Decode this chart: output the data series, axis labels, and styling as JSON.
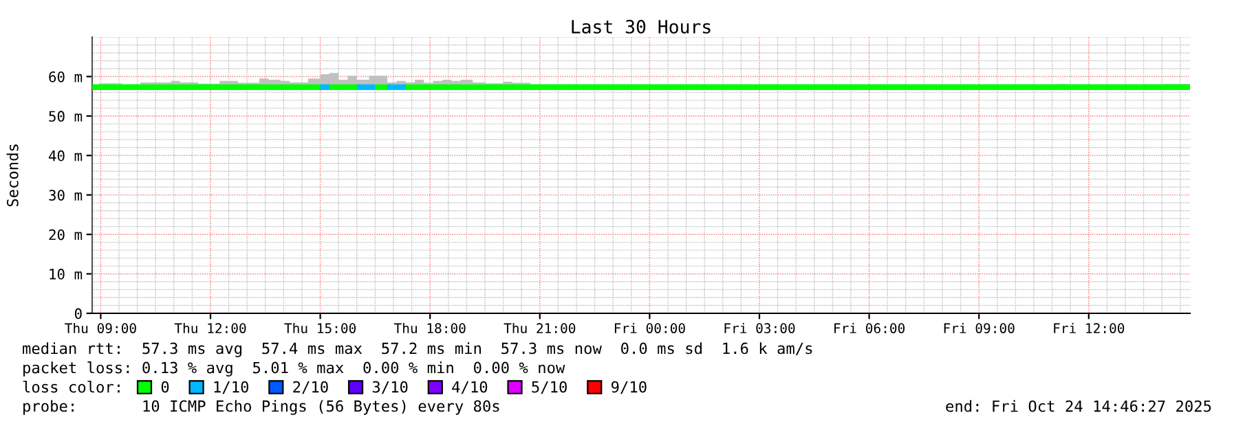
{
  "chart_data": {
    "type": "step",
    "title": "Last 30 Hours",
    "ylabel": "Seconds",
    "legend_title": "loss color:",
    "xlim": [
      "2025-10-23T08:46",
      "2025-10-24T14:46"
    ],
    "xticks": [
      {
        "value": "2025-10-23T09:00",
        "label": "Thu 09:00"
      },
      {
        "value": "2025-10-23T12:00",
        "label": "Thu 12:00"
      },
      {
        "value": "2025-10-23T15:00",
        "label": "Thu 15:00"
      },
      {
        "value": "2025-10-23T18:00",
        "label": "Thu 18:00"
      },
      {
        "value": "2025-10-23T21:00",
        "label": "Thu 21:00"
      },
      {
        "value": "2025-10-24T00:00",
        "label": "Fri 00:00"
      },
      {
        "value": "2025-10-24T03:00",
        "label": "Fri 03:00"
      },
      {
        "value": "2025-10-24T06:00",
        "label": "Fri 06:00"
      },
      {
        "value": "2025-10-24T09:00",
        "label": "Fri 09:00"
      },
      {
        "value": "2025-10-24T12:00",
        "label": "Fri 12:00"
      }
    ],
    "ylim": [
      0,
      70
    ],
    "yticks": [
      0,
      {
        "value": 10,
        "label": "10 m"
      },
      {
        "value": 20,
        "label": "20 m"
      },
      {
        "value": 30,
        "label": "30 m"
      },
      {
        "value": 40,
        "label": "40 m"
      },
      {
        "value": 50,
        "label": "50 m"
      },
      {
        "value": 60,
        "label": "60 m"
      }
    ],
    "grid": true,
    "legend": "bottom",
    "line_style": "solid",
    "marker": "none",
    "series": [
      {
        "name": "0",
        "color": "#00ff00",
        "x": [
          "2025-10-23T08:46",
          "2025-10-23T08:57",
          "2025-10-23T09:35",
          "2025-10-23T10:05",
          "2025-10-23T10:55",
          "2025-10-23T11:10",
          "2025-10-23T11:40",
          "2025-10-23T12:15",
          "2025-10-23T12:45",
          "2025-10-23T13:20",
          "2025-10-23T13:35",
          "2025-10-23T13:55",
          "2025-10-23T14:10",
          "2025-10-23T14:40",
          "2025-10-23T15:00",
          "2025-10-23T15:15",
          "2025-10-23T15:30",
          "2025-10-23T15:45",
          "2025-10-23T16:00",
          "2025-10-23T16:20",
          "2025-10-23T16:30",
          "2025-10-23T16:50",
          "2025-10-23T17:05",
          "2025-10-23T17:20",
          "2025-10-23T17:35",
          "2025-10-23T17:50",
          "2025-10-23T18:05",
          "2025-10-23T18:20",
          "2025-10-23T18:35",
          "2025-10-23T18:50",
          "2025-10-23T19:10",
          "2025-10-23T19:30",
          "2025-10-23T20:00",
          "2025-10-23T20:15",
          "2025-10-23T20:45",
          "2025-10-23T21:00",
          "2025-10-24T11:08",
          "2025-10-24T11:25",
          "2025-10-24T14:04",
          "2025-10-24T14:46"
        ],
        "values": [
          57.3,
          57.3,
          57.3,
          57.3,
          57.3,
          57.3,
          57.3,
          57.3,
          57.3,
          57.3,
          57.3,
          57.3,
          57.3,
          57.3,
          null,
          57.3,
          57.3,
          57.3,
          null,
          null,
          57.3,
          null,
          null,
          57.3,
          57.3,
          57.3,
          57.3,
          57.3,
          57.3,
          57.3,
          57.3,
          57.3,
          57.3,
          57.3,
          57.3,
          57.3,
          57.3,
          57.3,
          57.3,
          57.3
        ],
        "lower": [
          57.3,
          57.3,
          57.3,
          57.3,
          57.3,
          57.3,
          57.3,
          57.3,
          57.3,
          57.3,
          57.3,
          57.3,
          57.3,
          57.3,
          57.3,
          57.3,
          57.3,
          57.3,
          57.3,
          57.3,
          57.3,
          57.3,
          57.3,
          57.3,
          57.3,
          57.3,
          57.3,
          57.3,
          57.3,
          57.3,
          57.3,
          57.3,
          57.3,
          57.3,
          57.3,
          57.3,
          57.3,
          57.3,
          57.3,
          57.3
        ],
        "upper": [
          57.9,
          58.3,
          57.9,
          58.5,
          58.9,
          58.5,
          58.2,
          58.9,
          58.4,
          59.5,
          59.2,
          58.9,
          58.5,
          59.5,
          60.6,
          60.9,
          59.2,
          60.2,
          59.2,
          60.2,
          60.2,
          58.5,
          58.9,
          58.5,
          59.2,
          58.4,
          58.9,
          59.2,
          58.9,
          59.2,
          58.5,
          58.3,
          58.7,
          58.4,
          58.0,
          57.9,
          58.1,
          57.9,
          58.1,
          58.1
        ]
      },
      {
        "name": "1/10",
        "color": "#00b8ff",
        "type": "line",
        "x": [
          "2025-10-23T15:00",
          "2025-10-23T15:15"
        ],
        "values": [
          57.3,
          57.3
        ]
      },
      {
        "color": "#00b8ff",
        "type": "line",
        "x": [
          "2025-10-23T16:00",
          "2025-10-23T16:30"
        ],
        "values": [
          57.3,
          57.3
        ]
      },
      {
        "color": "#00b8ff",
        "type": "line",
        "x": [
          "2025-10-23T16:50",
          "2025-10-23T17:20"
        ],
        "values": [
          57.3,
          57.3
        ]
      },
      {
        "name": "2/10",
        "color": "#0059ff"
      },
      {
        "name": "3/10",
        "color": "#5e00ff"
      },
      {
        "name": "4/10",
        "color": "#7e00ff"
      },
      {
        "name": "5/10",
        "color": "#dd00ff"
      },
      {
        "name": "9/10",
        "color": "#ff0000"
      }
    ],
    "annotations": [
      "median rtt:  57.3 ms avg  57.4 ms max  57.2 ms min  57.3 ms now  0.0 ms sd  1.6 k am/s",
      "packet loss: 0.13 % avg  5.01 % max  0.00 % min  0.00 % now",
      "probe:       10 ICMP Echo Pings (56 Bytes) every 80s",
      "end: Fri Oct 24 14:46:27 2025"
    ]
  }
}
